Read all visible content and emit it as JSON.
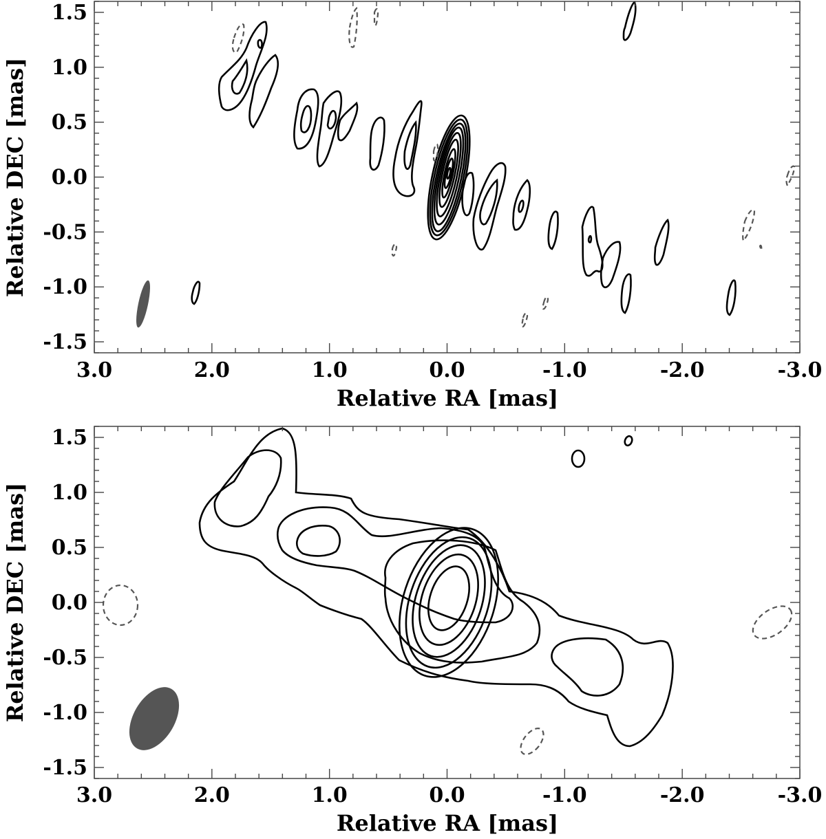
{
  "chart_data": [
    {
      "type": "contour",
      "panel": "top",
      "xlabel": "Relative RA [mas]",
      "ylabel": "Relative DEC [mas]",
      "xlim": [
        3.0,
        -3.0
      ],
      "ylim": [
        -1.6,
        1.6
      ],
      "x_ticks": [
        "3.0",
        "2.0",
        "1.0",
        "0.0",
        "-1.0",
        "-2.0",
        "-3.0"
      ],
      "y_ticks": [
        "1.5",
        "1.0",
        "0.5",
        "0.0",
        "-0.5",
        "-1.0",
        "-1.5"
      ],
      "core": {
        "x": 0.0,
        "y": 0.0,
        "levels": 9
      },
      "beam": {
        "x": 2.58,
        "y": -1.08,
        "major_mas": 0.4,
        "minor_mas": 0.1
      }
    },
    {
      "type": "contour",
      "panel": "bottom",
      "xlabel": "Relative RA [mas]",
      "ylabel": "Relative DEC [mas]",
      "xlim": [
        3.0,
        -3.0
      ],
      "ylim": [
        -1.6,
        1.6
      ],
      "x_ticks": [
        "3.0",
        "2.0",
        "1.0",
        "0.0",
        "-1.0",
        "-2.0",
        "-3.0"
      ],
      "y_ticks": [
        "1.5",
        "1.0",
        "0.5",
        "0.0",
        "-0.5",
        "-1.0",
        "-1.5"
      ],
      "core": {
        "x": 0.05,
        "y": 0.0,
        "levels": 7
      },
      "beam": {
        "x": 2.48,
        "y": -1.02,
        "major_mas": 0.6,
        "minor_mas": 0.33
      }
    }
  ]
}
